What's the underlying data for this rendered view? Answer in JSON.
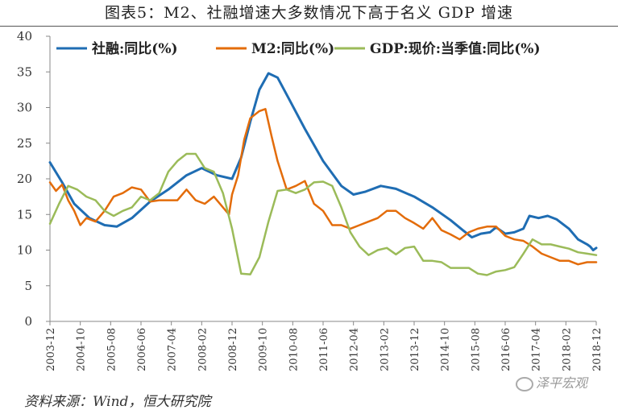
{
  "title": "图表5：M2、社融增速大多数情况下高于名义 GDP 增速",
  "source": "资料来源：Wind，恒大研究院",
  "watermark": "泽平宏观",
  "chart_data": {
    "type": "line",
    "ylim": [
      0,
      40
    ],
    "yticks": [
      0,
      5,
      10,
      15,
      20,
      25,
      30,
      35,
      40
    ],
    "xlim": [
      "2003-12",
      "2018-12"
    ],
    "xticks": [
      "2003-12",
      "2004-10",
      "2005-08",
      "2006-06",
      "2007-04",
      "2008-02",
      "2008-12",
      "2009-10",
      "2010-08",
      "2011-06",
      "2012-04",
      "2013-02",
      "2013-12",
      "2014-10",
      "2015-08",
      "2016-06",
      "2017-04",
      "2018-02",
      "2018-12"
    ],
    "grid": false,
    "legend_position": "top",
    "series": [
      {
        "name": "社融:同比(%)",
        "color": "#1f6db3",
        "points": [
          [
            "2003-12",
            22.3
          ],
          [
            "2004-04",
            19.5
          ],
          [
            "2004-08",
            16.5
          ],
          [
            "2005-01",
            14.5
          ],
          [
            "2005-06",
            13.5
          ],
          [
            "2005-10",
            13.3
          ],
          [
            "2006-03",
            14.5
          ],
          [
            "2006-09",
            16.8
          ],
          [
            "2007-03",
            18.5
          ],
          [
            "2007-09",
            20.5
          ],
          [
            "2008-02",
            21.5
          ],
          [
            "2008-07",
            20.5
          ],
          [
            "2008-12",
            20.0
          ],
          [
            "2009-03",
            23.0
          ],
          [
            "2009-06",
            28.0
          ],
          [
            "2009-09",
            32.5
          ],
          [
            "2009-12",
            34.8
          ],
          [
            "2010-03",
            34.2
          ],
          [
            "2010-07",
            31.0
          ],
          [
            "2010-12",
            27.0
          ],
          [
            "2011-06",
            22.5
          ],
          [
            "2011-12",
            19.0
          ],
          [
            "2012-04",
            17.8
          ],
          [
            "2012-08",
            18.2
          ],
          [
            "2013-01",
            19.0
          ],
          [
            "2013-06",
            18.6
          ],
          [
            "2013-12",
            17.5
          ],
          [
            "2014-06",
            16.0
          ],
          [
            "2014-12",
            14.2
          ],
          [
            "2015-04",
            12.8
          ],
          [
            "2015-07",
            11.8
          ],
          [
            "2015-10",
            12.3
          ],
          [
            "2016-01",
            12.5
          ],
          [
            "2016-03",
            13.2
          ],
          [
            "2016-06",
            12.3
          ],
          [
            "2016-09",
            12.5
          ],
          [
            "2016-12",
            13.0
          ],
          [
            "2017-02",
            14.8
          ],
          [
            "2017-05",
            14.5
          ],
          [
            "2017-08",
            14.8
          ],
          [
            "2017-11",
            14.3
          ],
          [
            "2018-03",
            13.0
          ],
          [
            "2018-06",
            11.5
          ],
          [
            "2018-09",
            10.8
          ],
          [
            "2018-10",
            10.5
          ],
          [
            "2018-11",
            10.0
          ],
          [
            "2018-12",
            10.3
          ]
        ]
      },
      {
        "name": "M2:同比(%)",
        "color": "#e36c0a",
        "points": [
          [
            "2003-12",
            19.5
          ],
          [
            "2004-02",
            18.3
          ],
          [
            "2004-04",
            19.2
          ],
          [
            "2004-06",
            17.0
          ],
          [
            "2004-08",
            15.5
          ],
          [
            "2004-10",
            13.5
          ],
          [
            "2004-12",
            14.5
          ],
          [
            "2005-03",
            14.0
          ],
          [
            "2005-06",
            15.5
          ],
          [
            "2005-09",
            17.5
          ],
          [
            "2005-12",
            18.0
          ],
          [
            "2006-03",
            18.8
          ],
          [
            "2006-06",
            18.5
          ],
          [
            "2006-09",
            16.8
          ],
          [
            "2006-12",
            17.0
          ],
          [
            "2007-03",
            17.0
          ],
          [
            "2007-06",
            17.0
          ],
          [
            "2007-09",
            18.5
          ],
          [
            "2007-12",
            17.0
          ],
          [
            "2008-03",
            16.5
          ],
          [
            "2008-06",
            17.5
          ],
          [
            "2008-09",
            16.0
          ],
          [
            "2008-11",
            15.0
          ],
          [
            "2008-12",
            17.8
          ],
          [
            "2009-02",
            20.5
          ],
          [
            "2009-04",
            25.5
          ],
          [
            "2009-06",
            28.5
          ],
          [
            "2009-09",
            29.5
          ],
          [
            "2009-11",
            29.8
          ],
          [
            "2010-01",
            26.0
          ],
          [
            "2010-03",
            22.5
          ],
          [
            "2010-06",
            18.5
          ],
          [
            "2010-09",
            19.0
          ],
          [
            "2010-12",
            19.7
          ],
          [
            "2011-03",
            16.5
          ],
          [
            "2011-06",
            15.5
          ],
          [
            "2011-09",
            13.5
          ],
          [
            "2011-12",
            13.5
          ],
          [
            "2012-03",
            13.0
          ],
          [
            "2012-06",
            13.5
          ],
          [
            "2012-09",
            14.0
          ],
          [
            "2012-12",
            14.5
          ],
          [
            "2013-03",
            15.5
          ],
          [
            "2013-06",
            15.5
          ],
          [
            "2013-09",
            14.5
          ],
          [
            "2013-12",
            13.8
          ],
          [
            "2014-03",
            13.0
          ],
          [
            "2014-06",
            14.5
          ],
          [
            "2014-09",
            12.8
          ],
          [
            "2014-12",
            12.2
          ],
          [
            "2015-03",
            11.5
          ],
          [
            "2015-06",
            12.5
          ],
          [
            "2015-09",
            13.0
          ],
          [
            "2015-12",
            13.3
          ],
          [
            "2016-03",
            13.3
          ],
          [
            "2016-06",
            12.0
          ],
          [
            "2016-09",
            11.5
          ],
          [
            "2016-12",
            11.3
          ],
          [
            "2017-03",
            10.5
          ],
          [
            "2017-06",
            9.5
          ],
          [
            "2017-09",
            9.0
          ],
          [
            "2017-12",
            8.5
          ],
          [
            "2018-03",
            8.5
          ],
          [
            "2018-06",
            8.0
          ],
          [
            "2018-09",
            8.3
          ],
          [
            "2018-12",
            8.3
          ]
        ]
      },
      {
        "name": "GDP:现价:当季值:同比(%)",
        "color": "#9bbb59",
        "points": [
          [
            "2003-12",
            13.7
          ],
          [
            "2004-03",
            16.5
          ],
          [
            "2004-06",
            19.0
          ],
          [
            "2004-09",
            18.5
          ],
          [
            "2004-12",
            17.5
          ],
          [
            "2005-03",
            17.0
          ],
          [
            "2005-06",
            15.5
          ],
          [
            "2005-09",
            14.8
          ],
          [
            "2005-12",
            15.5
          ],
          [
            "2006-03",
            16.0
          ],
          [
            "2006-06",
            17.5
          ],
          [
            "2006-09",
            17.0
          ],
          [
            "2006-12",
            18.0
          ],
          [
            "2007-03",
            21.0
          ],
          [
            "2007-06",
            22.5
          ],
          [
            "2007-09",
            23.5
          ],
          [
            "2007-12",
            23.5
          ],
          [
            "2008-03",
            21.5
          ],
          [
            "2008-06",
            21.0
          ],
          [
            "2008-09",
            18.0
          ],
          [
            "2008-12",
            13.0
          ],
          [
            "2009-03",
            6.7
          ],
          [
            "2009-06",
            6.6
          ],
          [
            "2009-09",
            9.0
          ],
          [
            "2009-12",
            14.0
          ],
          [
            "2010-03",
            18.3
          ],
          [
            "2010-06",
            18.5
          ],
          [
            "2010-09",
            18.0
          ],
          [
            "2010-12",
            18.5
          ],
          [
            "2011-03",
            19.5
          ],
          [
            "2011-06",
            19.6
          ],
          [
            "2011-09",
            19.0
          ],
          [
            "2011-12",
            16.0
          ],
          [
            "2012-03",
            12.5
          ],
          [
            "2012-06",
            10.5
          ],
          [
            "2012-09",
            9.3
          ],
          [
            "2012-12",
            10.0
          ],
          [
            "2013-03",
            10.3
          ],
          [
            "2013-06",
            9.4
          ],
          [
            "2013-09",
            10.3
          ],
          [
            "2013-12",
            10.5
          ],
          [
            "2014-03",
            8.5
          ],
          [
            "2014-06",
            8.5
          ],
          [
            "2014-09",
            8.3
          ],
          [
            "2014-12",
            7.5
          ],
          [
            "2015-03",
            7.5
          ],
          [
            "2015-06",
            7.5
          ],
          [
            "2015-09",
            6.7
          ],
          [
            "2015-12",
            6.5
          ],
          [
            "2016-03",
            7.0
          ],
          [
            "2016-06",
            7.2
          ],
          [
            "2016-09",
            7.6
          ],
          [
            "2016-12",
            9.5
          ],
          [
            "2017-03",
            11.5
          ],
          [
            "2017-06",
            10.8
          ],
          [
            "2017-09",
            10.8
          ],
          [
            "2017-12",
            10.5
          ],
          [
            "2018-03",
            10.2
          ],
          [
            "2018-06",
            9.7
          ],
          [
            "2018-09",
            9.5
          ],
          [
            "2018-12",
            9.3
          ]
        ]
      }
    ]
  }
}
